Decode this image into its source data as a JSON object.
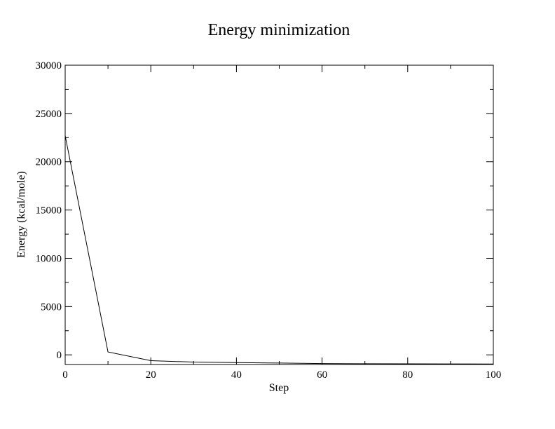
{
  "chart_data": {
    "type": "line",
    "title": "Energy minimization",
    "xlabel": "Step",
    "ylabel": "Energy (kcal/mole)",
    "xlim": [
      0,
      100
    ],
    "ylim": [
      -1000,
      30000
    ],
    "xticks": [
      0,
      20,
      40,
      60,
      80,
      100
    ],
    "yticks": [
      0,
      5000,
      10000,
      15000,
      20000,
      25000,
      30000
    ],
    "grid": false,
    "legend": "none",
    "series": [
      {
        "color": "#000000",
        "x": [
          0,
          10,
          20,
          30,
          40,
          50,
          60,
          70,
          80,
          90,
          100
        ],
        "y": [
          22700,
          300,
          -600,
          -750,
          -800,
          -850,
          -900,
          -920,
          -930,
          -940,
          -950
        ]
      }
    ]
  }
}
